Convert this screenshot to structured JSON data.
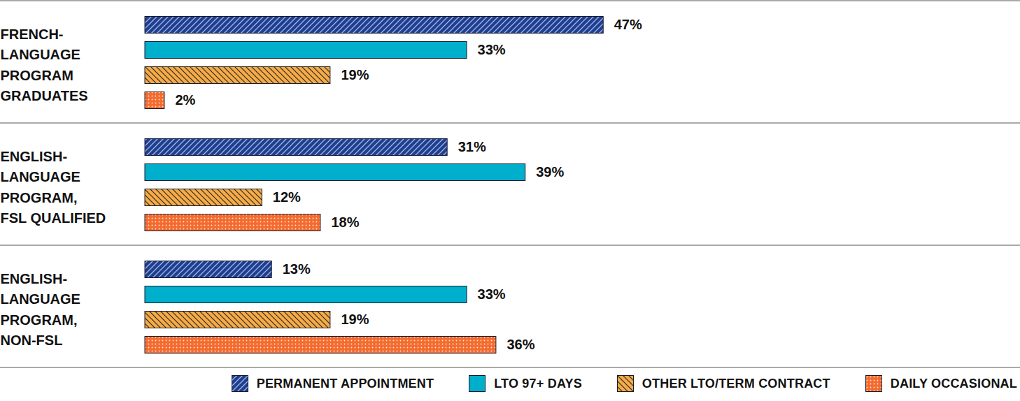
{
  "chart_data": {
    "type": "bar",
    "orientation": "horizontal",
    "data_labels": true,
    "tick_labels": false,
    "legend": "bottom",
    "categories": [
      "FRENCH-\nLANGUAGE\nPROGRAM\nGRADUATES",
      "ENGLISH-\nLANGUAGE\nPROGRAM,\nFSL QUALIFIED",
      "ENGLISH-\nLANGUAGE\nPROGRAM,\nNON-FSL"
    ],
    "xlim": [
      0,
      85
    ],
    "xticks": [],
    "series": [
      {
        "name": "PERMANENT APPOINTMENT",
        "color": "#1f3f8e",
        "values": [
          47,
          31,
          13
        ],
        "value_labels": [
          "47%",
          "31%",
          "13%"
        ]
      },
      {
        "name": "LTO 97+ DAYS",
        "color": "#00afcc",
        "values": [
          33,
          39,
          33
        ],
        "value_labels": [
          "33%",
          "39%",
          "33%"
        ]
      },
      {
        "name": "OTHER LTO/TERM CONTRACT",
        "color": "#f7ab45",
        "values": [
          19,
          12,
          19
        ],
        "value_labels": [
          "19%",
          "12%",
          "19%"
        ]
      },
      {
        "name": "DAILY OCCASIONAL",
        "color": "#f46b2f",
        "values": [
          2,
          18,
          36
        ],
        "value_labels": [
          "2%",
          "18%",
          "36%"
        ]
      }
    ]
  }
}
